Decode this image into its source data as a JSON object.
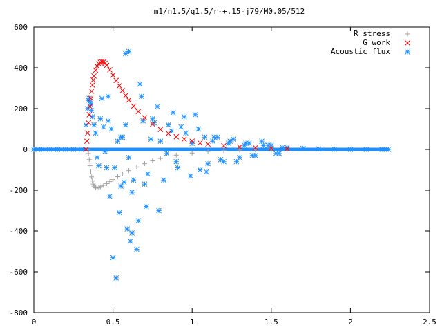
{
  "chart_data": {
    "type": "scatter",
    "title": "m1/n1.5/q1.5/r-+.15-j79/M0.05/512",
    "xlabel": "",
    "ylabel": "",
    "xlim": [
      0,
      2.5
    ],
    "ylim": [
      -800,
      600
    ],
    "x_ticks": [
      "0",
      "0.5",
      "1",
      "1.5",
      "2",
      "2.5"
    ],
    "y_ticks": [
      "600",
      "400",
      "200",
      "0",
      "-200",
      "-400",
      "-600",
      "-800"
    ],
    "legend_position": "top-right",
    "grid": false,
    "series": [
      {
        "name": "R stress",
        "marker": "plus",
        "color": "#a0a0a0",
        "x": [
          0.34,
          0.345,
          0.35,
          0.355,
          0.36,
          0.365,
          0.37,
          0.375,
          0.38,
          0.39,
          0.4,
          0.41,
          0.42,
          0.43,
          0.44,
          0.46,
          0.48,
          0.5,
          0.53,
          0.56,
          0.6,
          0.65,
          0.7,
          0.75,
          0.8,
          0.9,
          1.0,
          1.1,
          1.2,
          1.3,
          1.4,
          1.5,
          1.6
        ],
        "y": [
          0,
          -20,
          -50,
          -80,
          -110,
          -135,
          -155,
          -170,
          -180,
          -188,
          -190,
          -188,
          -184,
          -180,
          -176,
          -168,
          -158,
          -148,
          -134,
          -120,
          -104,
          -86,
          -70,
          -56,
          -44,
          -28,
          -18,
          -10,
          -6,
          -3,
          -2,
          -1,
          0
        ]
      },
      {
        "name": "G work",
        "marker": "cross",
        "color": "#ff0000",
        "x": [
          0.33,
          0.335,
          0.34,
          0.345,
          0.35,
          0.355,
          0.36,
          0.365,
          0.37,
          0.375,
          0.38,
          0.39,
          0.4,
          0.41,
          0.42,
          0.43,
          0.44,
          0.45,
          0.46,
          0.48,
          0.5,
          0.52,
          0.54,
          0.56,
          0.58,
          0.6,
          0.63,
          0.66,
          0.7,
          0.75,
          0.8,
          0.85,
          0.9,
          0.95,
          1.0,
          1.05,
          1.1,
          1.2,
          1.3,
          1.4,
          1.5,
          1.6
        ],
        "y": [
          0,
          40,
          80,
          130,
          170,
          210,
          250,
          285,
          315,
          340,
          360,
          388,
          408,
          420,
          427,
          430,
          428,
          422,
          412,
          390,
          364,
          338,
          312,
          288,
          264,
          242,
          212,
          186,
          155,
          124,
          98,
          78,
          62,
          50,
          40,
          32,
          26,
          18,
          12,
          8,
          5,
          3
        ]
      },
      {
        "name": "Acoustic flux",
        "marker": "asterisk",
        "color": "#1e90ff",
        "x": [
          0.0,
          0.05,
          0.1,
          0.15,
          0.2,
          0.25,
          0.3,
          0.33,
          0.34,
          0.345,
          0.35,
          0.355,
          0.36,
          0.365,
          0.37,
          0.38,
          0.39,
          0.4,
          0.41,
          0.42,
          0.43,
          0.44,
          0.45,
          0.46,
          0.47,
          0.48,
          0.5,
          0.52,
          0.54,
          0.55,
          0.56,
          0.57,
          0.58,
          0.59,
          0.6,
          0.61,
          0.62,
          0.63,
          0.65,
          0.67,
          0.69,
          0.7,
          0.72,
          0.74,
          0.76,
          0.78,
          0.8,
          0.82,
          0.85,
          0.88,
          0.9,
          0.93,
          0.96,
          1.0,
          1.02,
          1.05,
          1.08,
          1.1,
          1.13,
          1.16,
          1.2,
          1.23,
          1.26,
          1.3,
          1.33,
          1.36,
          1.4,
          1.45,
          1.5,
          1.55,
          1.6,
          1.7,
          1.8,
          1.9,
          2.0,
          2.1,
          2.2,
          2.24,
          0.47,
          0.49,
          0.51,
          0.53,
          0.55,
          0.58,
          0.6,
          0.62,
          0.66,
          0.68,
          0.71,
          0.75,
          0.79,
          0.84,
          0.87,
          0.91,
          0.95,
          0.99,
          1.04,
          1.09,
          1.14,
          1.18,
          1.24,
          1.28,
          1.34,
          1.38,
          1.44,
          1.48,
          1.53,
          1.57
        ],
        "y": [
          0,
          0,
          0,
          0,
          0,
          0,
          0,
          120,
          200,
          240,
          250,
          235,
          220,
          190,
          160,
          120,
          80,
          -40,
          -80,
          150,
          250,
          110,
          -10,
          -90,
          260,
          -230,
          -530,
          -630,
          -310,
          60,
          60,
          -160,
          470,
          -390,
          480,
          -450,
          -410,
          -150,
          -490,
          320,
          140,
          -170,
          -120,
          50,
          130,
          210,
          40,
          -150,
          120,
          180,
          -60,
          110,
          80,
          30,
          170,
          -100,
          60,
          -70,
          40,
          60,
          -60,
          30,
          50,
          -40,
          20,
          30,
          -30,
          20,
          20,
          -20,
          10,
          5,
          2,
          1,
          0,
          0,
          0,
          0,
          140,
          100,
          -90,
          40,
          -180,
          120,
          -40,
          -210,
          -350,
          260,
          -280,
          150,
          -300,
          -20,
          90,
          -90,
          160,
          -130,
          100,
          -110,
          60,
          -50,
          40,
          -60,
          30,
          -30,
          40,
          20,
          -20,
          10
        ]
      }
    ]
  }
}
